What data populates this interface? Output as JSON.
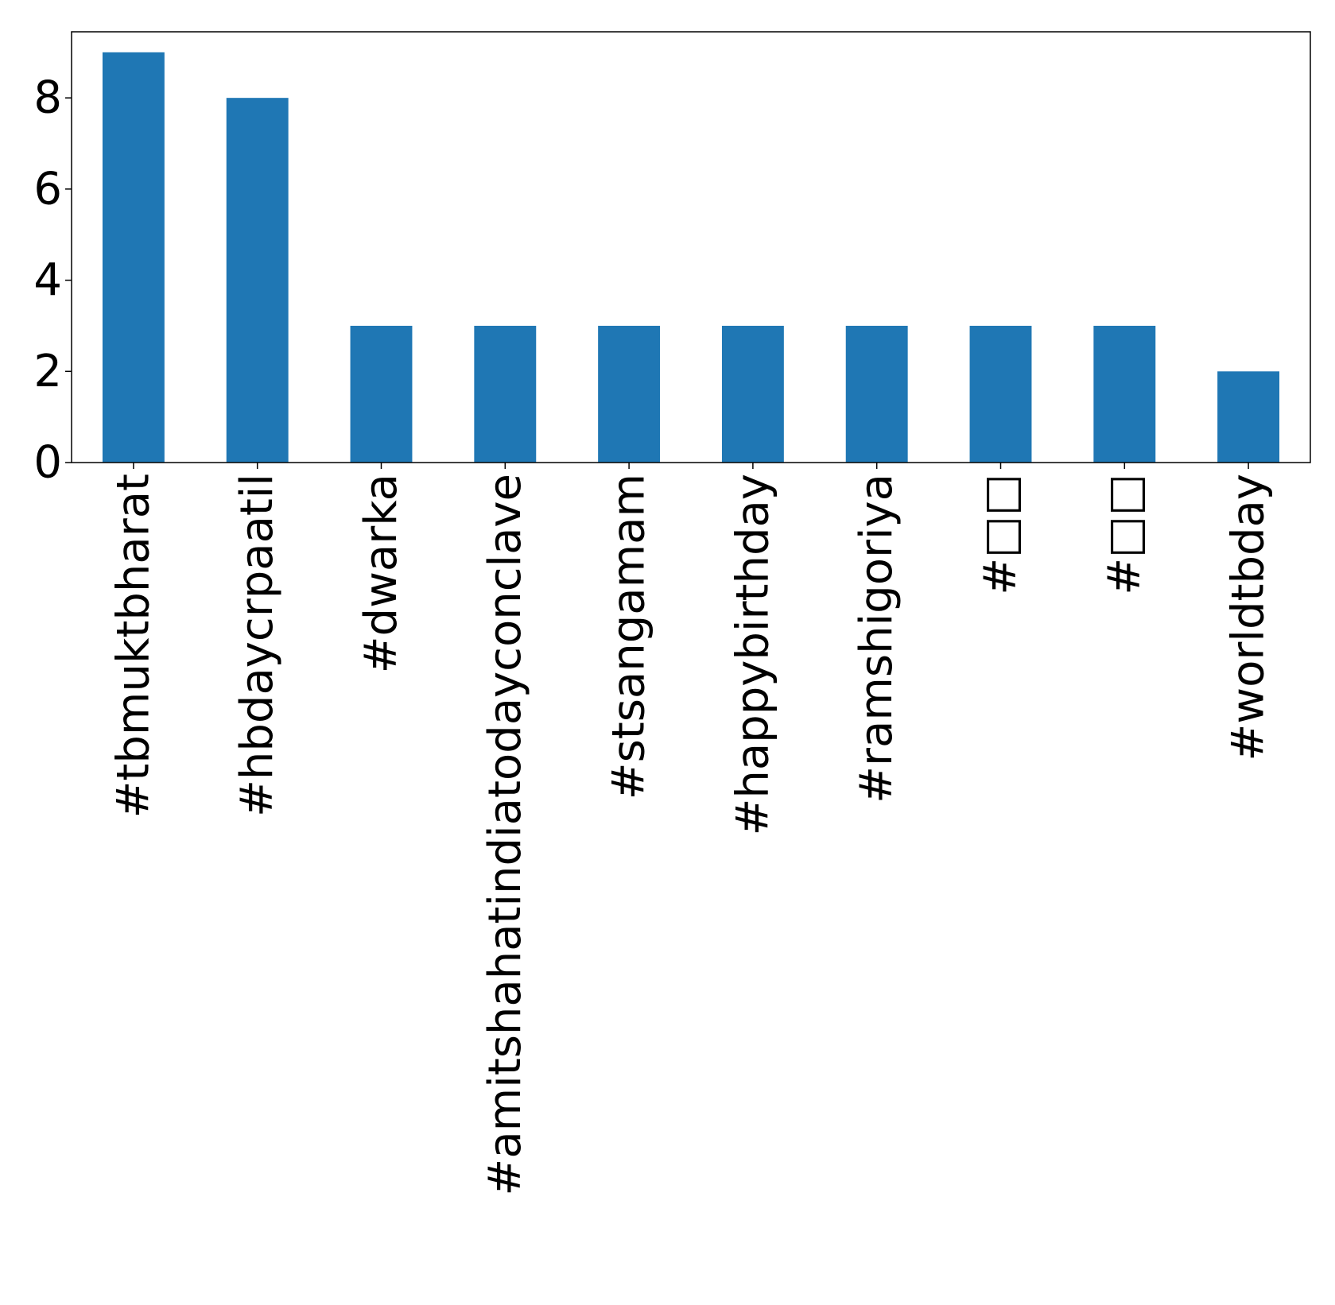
{
  "chart_data": {
    "type": "bar",
    "title": "",
    "xlabel": "",
    "ylabel": "",
    "categories": [
      "#tbmuktbharat",
      "#hbdaycrpaatil",
      "#dwarka",
      "#amitshahatindiatodayconclave",
      "#stsangamam",
      "#happybirthday",
      "#ramshigoriya",
      "#□□",
      "#□□",
      "#worldtbday"
    ],
    "values": [
      9,
      8,
      3,
      3,
      3,
      3,
      3,
      3,
      3,
      2
    ],
    "ylim": [
      0,
      9.45
    ],
    "yticks": [
      0,
      2,
      4,
      6,
      8
    ],
    "bar_color": "#1f77b4",
    "grid": false,
    "legend": "none"
  }
}
